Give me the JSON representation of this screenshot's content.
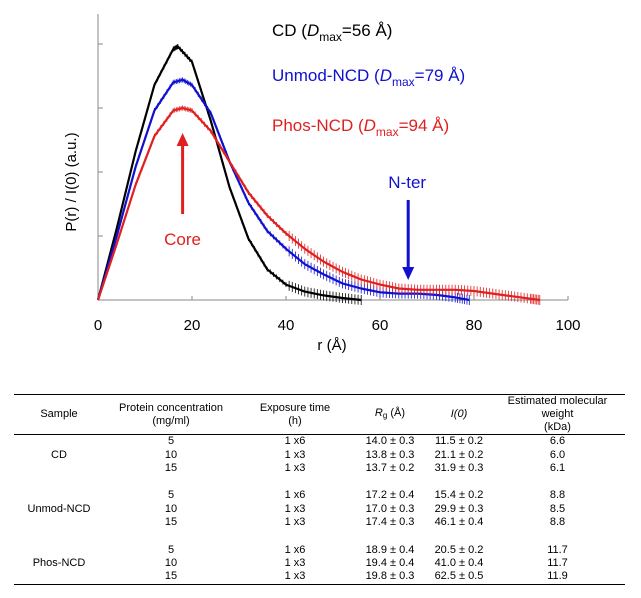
{
  "chart_data": {
    "type": "line",
    "xlabel": "r (Å)",
    "ylabel": "P(r) / I(0) (a.u.)",
    "xlim": [
      0,
      100
    ],
    "x_ticks": [
      0,
      20,
      40,
      60,
      80,
      100
    ],
    "ylim": [
      0,
      1
    ],
    "y_ticks_shown_without_labels": true,
    "series": [
      {
        "name": "CD",
        "color": "#000000",
        "dmax_label": "=56 Å",
        "dmax": 56,
        "x": [
          0,
          4,
          8,
          12,
          16,
          17,
          20,
          24,
          28,
          32,
          36,
          40,
          44,
          48,
          52,
          56
        ],
        "y": [
          0,
          0.28,
          0.58,
          0.84,
          0.98,
          0.99,
          0.93,
          0.7,
          0.44,
          0.24,
          0.12,
          0.06,
          0.033,
          0.018,
          0.008,
          0
        ]
      },
      {
        "name": "Unmod-NCD",
        "color": "#1010d0",
        "dmax_label": "=79 Å",
        "dmax": 79,
        "x": [
          0,
          4,
          8,
          12,
          16,
          18,
          20,
          24,
          28,
          32,
          36,
          40,
          44,
          48,
          52,
          56,
          60,
          64,
          68,
          72,
          76,
          79
        ],
        "y": [
          0,
          0.25,
          0.52,
          0.74,
          0.85,
          0.86,
          0.84,
          0.73,
          0.54,
          0.38,
          0.27,
          0.2,
          0.14,
          0.1,
          0.065,
          0.045,
          0.03,
          0.025,
          0.025,
          0.02,
          0.01,
          0
        ]
      },
      {
        "name": "Phos-NCD",
        "color": "#e02020",
        "dmax_label": "=94 Å",
        "dmax": 94,
        "x": [
          0,
          4,
          8,
          12,
          16,
          18,
          20,
          24,
          28,
          32,
          36,
          40,
          44,
          48,
          52,
          56,
          60,
          64,
          68,
          72,
          76,
          80,
          84,
          88,
          92,
          94
        ],
        "y": [
          0,
          0.22,
          0.45,
          0.64,
          0.74,
          0.75,
          0.74,
          0.66,
          0.54,
          0.42,
          0.33,
          0.26,
          0.2,
          0.15,
          0.11,
          0.08,
          0.06,
          0.045,
          0.04,
          0.04,
          0.04,
          0.035,
          0.025,
          0.015,
          0.005,
          0
        ]
      }
    ],
    "annotations": [
      {
        "text": "Core",
        "color": "#e02020",
        "arrow_x": 18
      },
      {
        "text": "N-ter",
        "color": "#1010d0",
        "arrow_x": 66
      }
    ]
  },
  "legend": {
    "items": [
      {
        "name": "CD",
        "color": "#000000",
        "open": " (",
        "dsym": "D",
        "dsub": "max",
        "rest": "=56 Å)"
      },
      {
        "name": "Unmod-NCD",
        "color": "#1010d0",
        "open": " (",
        "dsym": "D",
        "dsub": "max",
        "rest": "=79 Å)"
      },
      {
        "name": "Phos-NCD",
        "color": "#e02020",
        "open": " (",
        "dsym": "D",
        "dsub": "max",
        "rest": "=94 Å)"
      }
    ]
  },
  "table": {
    "headers": {
      "sample": "Sample",
      "conc_line1": "Protein concentration",
      "conc_line2": "(mg/ml)",
      "exp_line1": "Exposure time",
      "exp_line2": "(h)",
      "rg_sym": "R",
      "rg_sub": "g",
      "rg_unit": " (Å)",
      "i0": "I(0)",
      "mw_line1": "Estimated molecular weight",
      "mw_line2": "(kDa)"
    },
    "groups": [
      {
        "sample": "CD",
        "rows": [
          {
            "conc": "5",
            "exp": "1 x6",
            "rg": "14.0 ± 0.3",
            "i0": "11.5 ± 0.2",
            "mw": "6.6"
          },
          {
            "conc": "10",
            "exp": "1 x3",
            "rg": "13.8 ± 0.3",
            "i0": "21.1 ± 0.2",
            "mw": "6.0"
          },
          {
            "conc": "15",
            "exp": "1 x3",
            "rg": "13.7 ± 0.2",
            "i0": "31.9 ± 0.3",
            "mw": "6.1"
          }
        ]
      },
      {
        "sample": "Unmod-NCD",
        "rows": [
          {
            "conc": "5",
            "exp": "1 x6",
            "rg": "17.2 ± 0.4",
            "i0": "15.4 ± 0.2",
            "mw": "8.8"
          },
          {
            "conc": "10",
            "exp": "1 x3",
            "rg": "17.0 ± 0.3",
            "i0": "29.9 ± 0.3",
            "mw": "8.5"
          },
          {
            "conc": "15",
            "exp": "1 x3",
            "rg": "17.4 ± 0.3",
            "i0": "46.1 ± 0.4",
            "mw": "8.8"
          }
        ]
      },
      {
        "sample": "Phos-NCD",
        "rows": [
          {
            "conc": "5",
            "exp": "1 x6",
            "rg": "18.9 ± 0.4",
            "i0": "20.5 ± 0.2",
            "mw": "11.7"
          },
          {
            "conc": "10",
            "exp": "1 x3",
            "rg": "19.4 ± 0.4",
            "i0": "41.0 ± 0.4",
            "mw": "11.7"
          },
          {
            "conc": "15",
            "exp": "1 x3",
            "rg": "19.8 ± 0.3",
            "i0": "62.5 ± 0.5",
            "mw": "11.9"
          }
        ]
      }
    ]
  }
}
